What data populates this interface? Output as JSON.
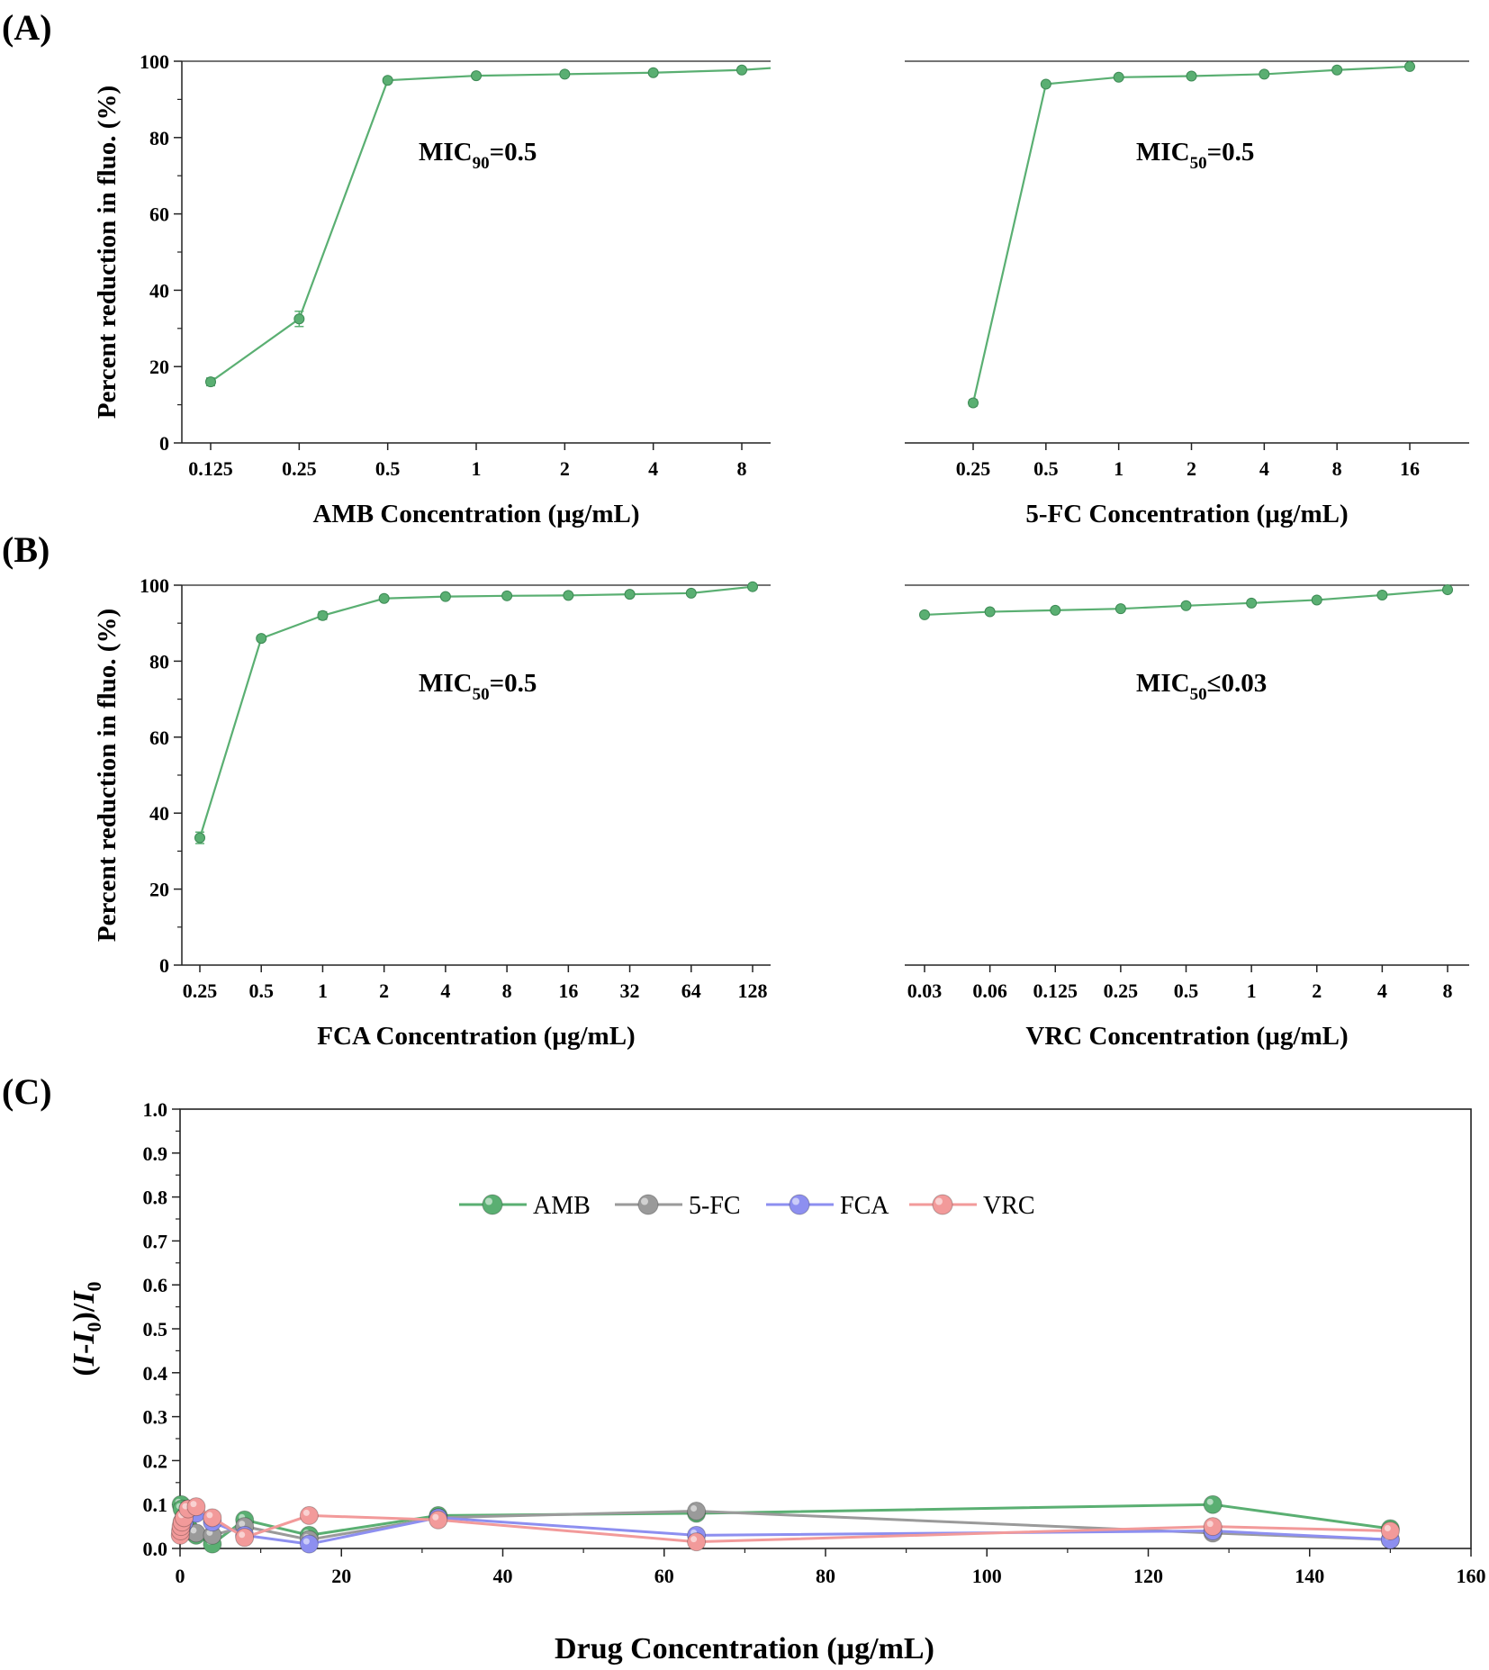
{
  "panel_labels": {
    "a": "(A)",
    "b": "(B)",
    "c": "(C)"
  },
  "colors": {
    "AMB": "#5aaf72",
    "5-FC": "#9a9a9a",
    "FCA": "#8d8ff0",
    "VRC": "#f29a9a"
  },
  "chart_data": [
    {
      "id": "amb",
      "type": "line",
      "xscale": "categorical",
      "categories": [
        "0.125",
        "0.25",
        "0.5",
        "1",
        "2",
        "4",
        "8"
      ],
      "values": [
        16,
        32.5,
        95,
        96.2,
        96.6,
        97,
        97.7
      ],
      "errors": [
        1,
        2,
        0.5,
        0.5,
        0.5,
        0.5,
        0.5
      ],
      "xlabel": "AMB Concentration (µg/mL)",
      "ylabel": "Percent reduction in fluo. (%)",
      "ylim": [
        0,
        100
      ],
      "yticks": [
        "0",
        "20",
        "40",
        "60",
        "80",
        "100"
      ],
      "annotation": {
        "prefix": "MIC",
        "sub": "90",
        "suffix": "=0.5"
      },
      "line_extends_to_right_edge": 98.2,
      "series_color": "AMB"
    },
    {
      "id": "fc5",
      "type": "line",
      "xscale": "categorical",
      "categories": [
        "0.25",
        "0.5",
        "1",
        "2",
        "4",
        "8",
        "16"
      ],
      "values": [
        10.5,
        94,
        95.8,
        96.1,
        96.6,
        97.7,
        98.6
      ],
      "errors": [
        0.8,
        0.5,
        0.5,
        0.5,
        0.5,
        0.5,
        0.5
      ],
      "xlabel": "5-FC Concentration (µg/mL)",
      "ylim": [
        0,
        100
      ],
      "annotation": {
        "prefix": "MIC",
        "sub": "50",
        "suffix": "=0.5"
      },
      "series_color": "AMB"
    },
    {
      "id": "fca",
      "type": "line",
      "xscale": "categorical",
      "categories": [
        "0.25",
        "0.5",
        "1",
        "2",
        "4",
        "8",
        "16",
        "32",
        "64",
        "128"
      ],
      "values": [
        33.5,
        86,
        92,
        96.5,
        97,
        97.2,
        97.3,
        97.6,
        97.9,
        99.6
      ],
      "errors": [
        1.5,
        0.6,
        1,
        0.6,
        0.5,
        0.5,
        0.5,
        0.5,
        0.5,
        0.5
      ],
      "xlabel": "FCA Concentration (µg/mL)",
      "ylabel": "Percent reduction in fluo. (%)",
      "ylim": [
        0,
        100
      ],
      "yticks": [
        "0",
        "20",
        "40",
        "60",
        "80",
        "100"
      ],
      "annotation": {
        "prefix": "MIC",
        "sub": "50",
        "suffix": "=0.5"
      },
      "series_color": "AMB"
    },
    {
      "id": "vrc",
      "type": "line",
      "xscale": "categorical",
      "categories": [
        "0.03",
        "0.06",
        "0.125",
        "0.25",
        "0.5",
        "1",
        "2",
        "4",
        "8"
      ],
      "values": [
        92.2,
        93,
        93.4,
        93.8,
        94.6,
        95.3,
        96.1,
        97.4,
        98.8
      ],
      "errors": [
        0.5,
        0.5,
        0.5,
        0.5,
        0.5,
        0.5,
        0.5,
        0.5,
        0.5
      ],
      "xlabel": "VRC Concentration (µg/mL)",
      "ylim": [
        0,
        100
      ],
      "annotation": {
        "prefix": "MIC",
        "sub": "50",
        "suffix": "≤0.03"
      },
      "series_color": "AMB"
    },
    {
      "id": "ratio",
      "type": "line",
      "xlabel": "Drug Concentration (µg/mL)",
      "ylabel": "(I-I0)/I0",
      "xlim": [
        0,
        160
      ],
      "ylim": [
        0,
        1.0
      ],
      "xticks": [
        "0",
        "20",
        "40",
        "60",
        "80",
        "100",
        "120",
        "140",
        "160"
      ],
      "yticks": [
        "0.0",
        "0.1",
        "0.2",
        "0.3",
        "0.4",
        "0.5",
        "0.6",
        "0.7",
        "0.8",
        "0.9",
        "1.0"
      ],
      "legend_position": "top-center",
      "series": [
        {
          "name": "AMB",
          "color": "AMB",
          "x": [
            0.125,
            0.25,
            0.5,
            1,
            2,
            4,
            8,
            16,
            32,
            64,
            128,
            150
          ],
          "y": [
            0.1,
            0.09,
            0.07,
            0.05,
            0.03,
            0.01,
            0.065,
            0.03,
            0.075,
            0.08,
            0.1,
            0.045
          ]
        },
        {
          "name": "5-FC",
          "color": "5-FC",
          "x": [
            0.25,
            0.5,
            1,
            2,
            4,
            8,
            16,
            32,
            64,
            128,
            150
          ],
          "y": [
            0.06,
            0.05,
            0.04,
            0.035,
            0.03,
            0.05,
            0.02,
            0.07,
            0.085,
            0.035,
            0.02
          ]
        },
        {
          "name": "FCA",
          "color": "FCA",
          "x": [
            0.25,
            0.5,
            1,
            2,
            4,
            8,
            16,
            32,
            64,
            128,
            150
          ],
          "y": [
            0.05,
            0.06,
            0.09,
            0.08,
            0.06,
            0.03,
            0.01,
            0.07,
            0.03,
            0.04,
            0.02
          ]
        },
        {
          "name": "VRC",
          "color": "VRC",
          "x": [
            0.03,
            0.06,
            0.125,
            0.25,
            0.5,
            1,
            2,
            4,
            8,
            16,
            32,
            64,
            128,
            150
          ],
          "y": [
            0.03,
            0.04,
            0.05,
            0.06,
            0.07,
            0.09,
            0.095,
            0.07,
            0.025,
            0.075,
            0.065,
            0.015,
            0.05,
            0.04
          ]
        }
      ]
    }
  ]
}
